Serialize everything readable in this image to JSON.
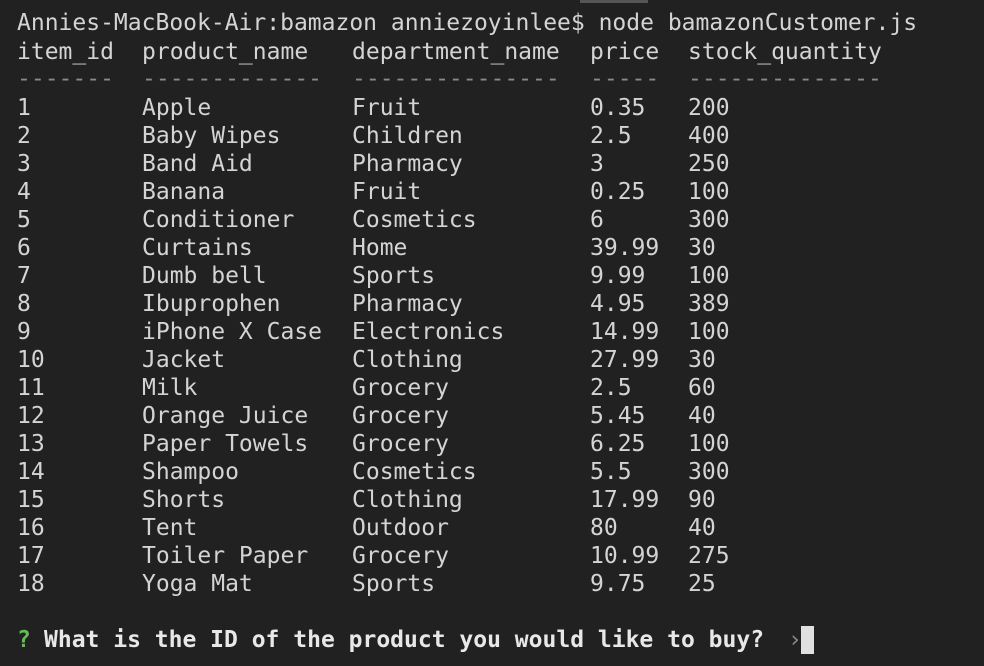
{
  "terminal": {
    "command_line": "Annies-MacBook-Air:bamazon anniezoyinlee$ node bamazonCustomer.js",
    "table": {
      "columns": [
        "item_id",
        "product_name",
        "department_name",
        "price",
        "stock_quantity"
      ],
      "separators": [
        "-------",
        "-------------",
        "---------------",
        "-----",
        "--------------"
      ],
      "rows": [
        [
          "1",
          "Apple",
          "Fruit",
          "0.35",
          "200"
        ],
        [
          "2",
          "Baby Wipes",
          "Children",
          "2.5",
          "400"
        ],
        [
          "3",
          "Band Aid",
          "Pharmacy",
          "3",
          "250"
        ],
        [
          "4",
          "Banana",
          "Fruit",
          "0.25",
          "100"
        ],
        [
          "5",
          "Conditioner",
          "Cosmetics",
          "6",
          "300"
        ],
        [
          "6",
          "Curtains",
          "Home",
          "39.99",
          "30"
        ],
        [
          "7",
          "Dumb bell",
          "Sports",
          "9.99",
          "100"
        ],
        [
          "8",
          "Ibuprophen",
          "Pharmacy",
          "4.95",
          "389"
        ],
        [
          "9",
          "iPhone X Case",
          "Electronics",
          "14.99",
          "100"
        ],
        [
          "10",
          "Jacket",
          "Clothing",
          "27.99",
          "30"
        ],
        [
          "11",
          "Milk",
          "Grocery",
          "2.5",
          "60"
        ],
        [
          "12",
          "Orange Juice",
          "Grocery",
          "5.45",
          "40"
        ],
        [
          "13",
          "Paper Towels",
          "Grocery",
          "6.25",
          "100"
        ],
        [
          "14",
          "Shampoo",
          "Cosmetics",
          "5.5",
          "300"
        ],
        [
          "15",
          "Shorts",
          "Clothing",
          "17.99",
          "90"
        ],
        [
          "16",
          "Tent",
          "Outdoor",
          "80",
          "40"
        ],
        [
          "17",
          "Toiler Paper",
          "Grocery",
          "10.99",
          "275"
        ],
        [
          "18",
          "Yoga Mat",
          "Sports",
          "9.75",
          "25"
        ]
      ]
    },
    "prompt": {
      "marker": "?",
      "question": "What is the ID of the product you would like to buy?",
      "pointer": "›"
    }
  }
}
